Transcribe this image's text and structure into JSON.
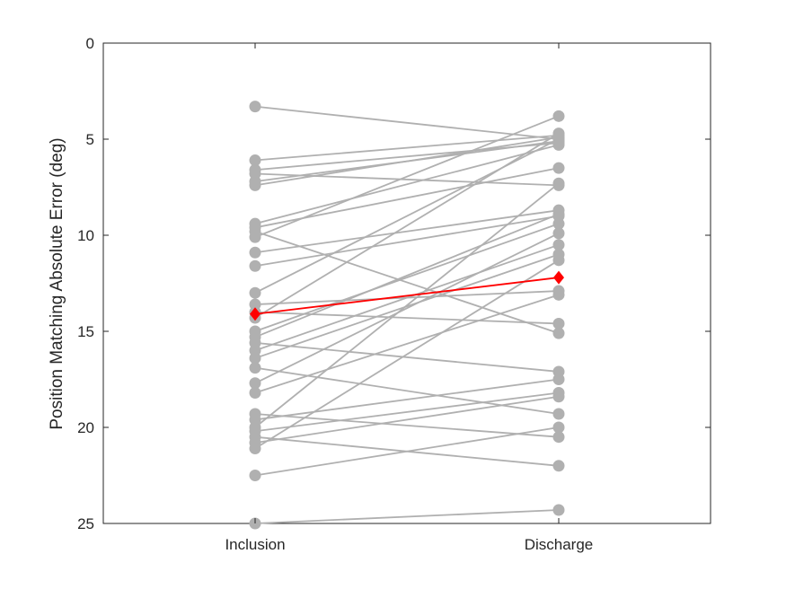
{
  "chart_data": {
    "type": "line",
    "title": "",
    "xlabel": "",
    "ylabel": "Position Matching Absolute Error (deg)",
    "categories": [
      "Inclusion",
      "Discharge"
    ],
    "ylim": [
      0,
      25
    ],
    "y_reversed": true,
    "yticks": [
      "0",
      "5",
      "10",
      "15",
      "20",
      "25"
    ],
    "grid": false,
    "legend": "none",
    "individual_color": "#b0b0b0",
    "mean_color": "#ff0000",
    "subjects": [
      [
        3.3,
        5.0
      ],
      [
        6.1,
        4.8
      ],
      [
        6.6,
        5.2
      ],
      [
        6.8,
        7.4
      ],
      [
        7.2,
        5.1
      ],
      [
        7.4,
        4.9
      ],
      [
        9.4,
        5.3
      ],
      [
        9.6,
        6.5
      ],
      [
        9.8,
        15.1
      ],
      [
        10.1,
        3.8
      ],
      [
        10.9,
        8.7
      ],
      [
        11.6,
        9.0
      ],
      [
        13.0,
        5.0
      ],
      [
        13.6,
        12.9
      ],
      [
        14.0,
        14.6
      ],
      [
        14.3,
        4.7
      ],
      [
        15.0,
        9.4
      ],
      [
        15.3,
        8.9
      ],
      [
        15.6,
        17.1
      ],
      [
        16.0,
        10.5
      ],
      [
        16.4,
        11.0
      ],
      [
        16.9,
        19.3
      ],
      [
        17.7,
        9.9
      ],
      [
        18.2,
        13.1
      ],
      [
        19.3,
        20.5
      ],
      [
        19.6,
        17.5
      ],
      [
        20.0,
        7.3
      ],
      [
        20.2,
        18.2
      ],
      [
        20.5,
        22.0
      ],
      [
        20.8,
        18.4
      ],
      [
        21.1,
        11.3
      ],
      [
        22.5,
        20.0
      ],
      [
        25.0,
        24.3
      ]
    ],
    "mean": [
      14.1,
      12.2
    ]
  }
}
